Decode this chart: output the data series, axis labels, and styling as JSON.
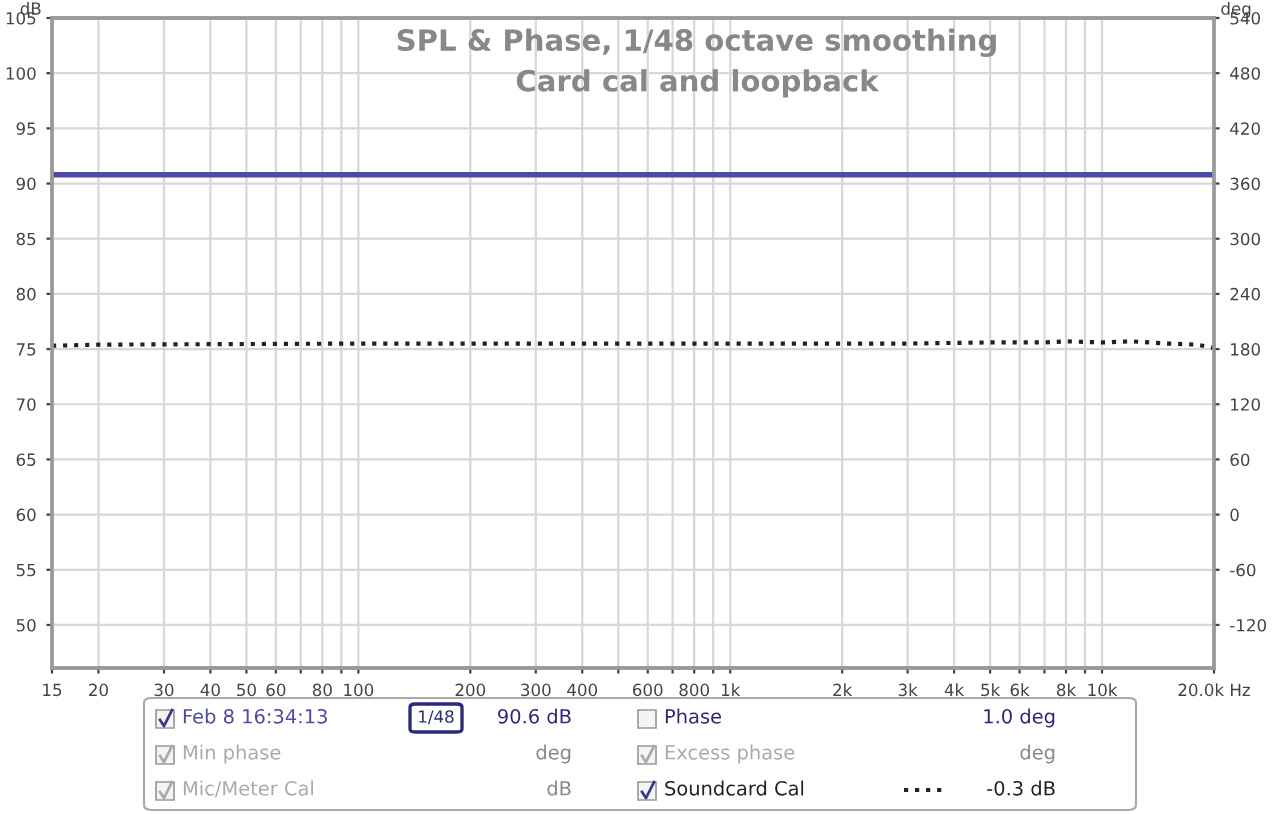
{
  "chart_data": {
    "type": "line",
    "title": "SPL & Phase, 1/48 octave smoothing",
    "subtitle": "Card cal and loopback",
    "ylabel": "dB",
    "y2label": "deg",
    "log": "x",
    "xlim": [
      15,
      20000
    ],
    "xticks": [
      15,
      20,
      30,
      40,
      50,
      60,
      {
        "value": 70,
        "label": null
      },
      80,
      {
        "value": 90,
        "label": null
      },
      100,
      200,
      300,
      400,
      {
        "value": 500,
        "label": null
      },
      600,
      {
        "value": 700,
        "label": null
      },
      800,
      {
        "value": 900,
        "label": null
      },
      {
        "value": 1000,
        "label": "1k"
      },
      {
        "value": 2000,
        "label": "2k"
      },
      {
        "value": 3000,
        "label": "3k"
      },
      {
        "value": 4000,
        "label": "4k"
      },
      {
        "value": 5000,
        "label": "5k"
      },
      {
        "value": 6000,
        "label": "6k"
      },
      {
        "value": 7000,
        "label": null
      },
      {
        "value": 8000,
        "label": "8k"
      },
      {
        "value": 9000,
        "label": null
      },
      {
        "value": 10000,
        "label": "10k"
      },
      {
        "value": 20000,
        "label": "20.0k Hz"
      }
    ],
    "ylim": [
      46.1,
      105
    ],
    "yticks": [
      50,
      55,
      60,
      65,
      70,
      75,
      80,
      85,
      90,
      95,
      100,
      105
    ],
    "y2lim": [
      -166.8,
      540
    ],
    "y2ticks": [
      -120,
      -60,
      0,
      60,
      120,
      180,
      240,
      300,
      360,
      420,
      480,
      540
    ],
    "grid": true,
    "legend": "bottom",
    "series": [
      {
        "name": "Feb 8 16:34:13",
        "color": "#4b4ba6",
        "line_style": "solid",
        "x": [
          15,
          20000
        ],
        "values": [
          90.8,
          90.8
        ]
      },
      {
        "name": "Soundcard Cal",
        "color": "#222222",
        "line_style": "dotted",
        "x": [
          15,
          20,
          100,
          1000,
          3000,
          5000,
          7000,
          8000,
          10000,
          12000,
          15000,
          18000,
          20000
        ],
        "values": [
          75.3,
          75.4,
          75.5,
          75.5,
          75.5,
          75.6,
          75.6,
          75.7,
          75.6,
          75.7,
          75.5,
          75.4,
          75.1
        ]
      }
    ],
    "annotations": [
      "1/48",
      "90.6 dB",
      "Phase",
      "1.0 deg",
      "Min phase",
      "deg",
      "Excess phase",
      "deg",
      "Mic/Meter Cal",
      "dB",
      "-0.3 dB"
    ]
  }
}
